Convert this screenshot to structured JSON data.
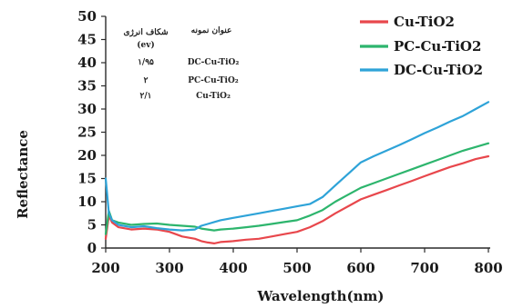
{
  "chart_data": {
    "type": "line",
    "title": "",
    "xlabel": "Wavelength(nm)",
    "ylabel": "Reflectance",
    "xlim": [
      200,
      800
    ],
    "ylim": [
      0,
      50
    ],
    "xticks": [
      "200",
      "300",
      "400",
      "500",
      "600",
      "700",
      "800"
    ],
    "yticks": [
      "0",
      "5",
      "10",
      "15",
      "20",
      "25",
      "30",
      "35",
      "40",
      "45",
      "50"
    ],
    "grid": false,
    "legend_position": "top-right",
    "series": [
      {
        "name": "Cu-TiO2",
        "color": "#e8474c",
        "x": [
          200,
          205,
          210,
          220,
          240,
          260,
          280,
          300,
          320,
          340,
          350,
          360,
          370,
          380,
          400,
          420,
          440,
          460,
          480,
          500,
          520,
          540,
          560,
          580,
          600,
          620,
          640,
          660,
          680,
          700,
          720,
          740,
          760,
          780,
          800
        ],
        "y": [
          2,
          7,
          5.5,
          4.5,
          4,
          4.2,
          4,
          3.5,
          2.5,
          2,
          1.5,
          1.2,
          1,
          1.3,
          1.5,
          1.8,
          2,
          2.5,
          3,
          3.5,
          4.5,
          5.8,
          7.5,
          9,
          10.5,
          11.5,
          12.5,
          13.5,
          14.5,
          15.5,
          16.5,
          17.5,
          18.3,
          19.2,
          19.8
        ]
      },
      {
        "name": "PC-Cu-TiO2",
        "color": "#2db56d",
        "x": [
          200,
          205,
          210,
          220,
          240,
          260,
          280,
          300,
          320,
          340,
          350,
          360,
          370,
          380,
          400,
          420,
          440,
          460,
          480,
          500,
          520,
          540,
          560,
          580,
          600,
          620,
          640,
          660,
          680,
          700,
          720,
          740,
          760,
          780,
          800
        ],
        "y": [
          3,
          8,
          6,
          5.5,
          5,
          5.2,
          5.3,
          5,
          4.8,
          4.6,
          4.2,
          4,
          3.8,
          4,
          4.2,
          4.5,
          4.8,
          5.2,
          5.6,
          6,
          7,
          8.2,
          10,
          11.5,
          13,
          14,
          15,
          16,
          17,
          18,
          19,
          20,
          21,
          21.8,
          22.6
        ]
      },
      {
        "name": "DC-Cu-TiO2",
        "color": "#2ea3d8",
        "x": [
          200,
          205,
          210,
          220,
          240,
          260,
          280,
          300,
          320,
          340,
          350,
          360,
          370,
          380,
          400,
          420,
          440,
          460,
          480,
          500,
          520,
          540,
          560,
          580,
          600,
          620,
          640,
          660,
          680,
          700,
          720,
          740,
          760,
          780,
          800
        ],
        "y": [
          15,
          7.5,
          6,
          5,
          4.5,
          4.7,
          4.3,
          4,
          3.8,
          4,
          4.8,
          5.2,
          5.6,
          6,
          6.5,
          7,
          7.5,
          8,
          8.5,
          9,
          9.5,
          11,
          13.5,
          16,
          18.5,
          19.8,
          21,
          22.2,
          23.5,
          24.8,
          26,
          27.3,
          28.5,
          30,
          31.5
        ]
      }
    ],
    "inset_table": {
      "headers": [
        "عنوان نمونه",
        "شکاف انرژی"
      ],
      "unit": "(ev)",
      "rows": [
        [
          "DC-Cu-TiO₂",
          "۱/۹۵"
        ],
        [
          "PC-Cu-TiO₂",
          "۲"
        ],
        [
          "Cu-TiO₂",
          "۲/۱"
        ]
      ]
    }
  }
}
